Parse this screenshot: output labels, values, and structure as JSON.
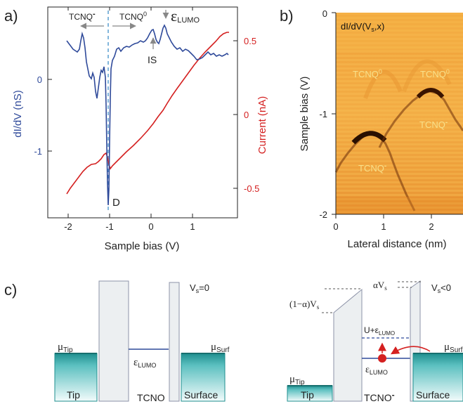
{
  "panel_labels": {
    "a": "a)",
    "b": "b)",
    "c": "c)"
  },
  "colors": {
    "didv": "#2f4a9a",
    "current": "#d42020",
    "dashed": "#5a9fd0",
    "heat_dark": "#3a1a00",
    "heat_light": "#f8c34a",
    "barrier_fill": "#eceff1",
    "teal": "#2ea4a4"
  },
  "panel_a": {
    "xlabel": "Sample bias (V)",
    "ylabel_left": "dI/dV (nS)",
    "ylabel_right": "Current (nA)",
    "xticks": [
      "-2",
      "-1",
      "0",
      "1"
    ],
    "yticks_left": [
      "0",
      "-1"
    ],
    "yticks_right": [
      "0.5",
      "0",
      "-0.5"
    ],
    "annotations": {
      "tcnq_minus": "TCNQ",
      "tcnq_minus_sup": "-",
      "tcnq_zero": "TCNQ",
      "tcnq_zero_sup": "0",
      "elumo_eps": "ε",
      "elumo_sub": "LUMO",
      "is": "IS",
      "d": "D"
    }
  },
  "panel_b": {
    "title": "dI/dV(V",
    "title_sub": "s",
    "title_end": ",x)",
    "xlabel": "Lateral distance (nm)",
    "ylabel": "Sample bias (V)",
    "xticks": [
      "0",
      "1",
      "2"
    ],
    "yticks": [
      "0",
      "-1",
      "-2"
    ],
    "labels": {
      "tcnq0_a": "TCNQ",
      "tcnq0_a_sup": "0",
      "tcnq0_b": "TCNQ",
      "tcnq0_b_sup": "0",
      "tcnqm_a": "TCNQ",
      "tcnqm_a_sup": "-",
      "tcnqm_b": "TCNQ",
      "tcnqm_b_sup": "-"
    }
  },
  "panel_c_left": {
    "vs": "V",
    "vs_sub": "s",
    "vs_eq": "=0",
    "mu_tip": "μ",
    "mu_tip_sub": "Tip",
    "mu_surf": "μ",
    "mu_surf_sub": "Surf",
    "elumo": "ε",
    "elumo_sub": "LUMO",
    "tip": "Tip",
    "tcno": "TCNO",
    "surface": "Surface"
  },
  "panel_c_right": {
    "vs": "V",
    "vs_sub": "s",
    "vs_lt": "<0",
    "alpha_vs": "αV",
    "alpha_vs_sub": "s",
    "one_minus_alpha": "(1−α)V",
    "one_minus_alpha_sub": "s",
    "u_eps": "U+ε",
    "u_eps_sub": "LUMO",
    "elumo": "ε",
    "elumo_sub": "LUMO",
    "mu_tip": "μ",
    "mu_tip_sub": "Tip",
    "mu_surf": "μ",
    "mu_surf_sub": "Surf",
    "tip": "Tip",
    "tcno": "TCNO",
    "tcno_sup": "-",
    "surface": "Surface"
  }
}
